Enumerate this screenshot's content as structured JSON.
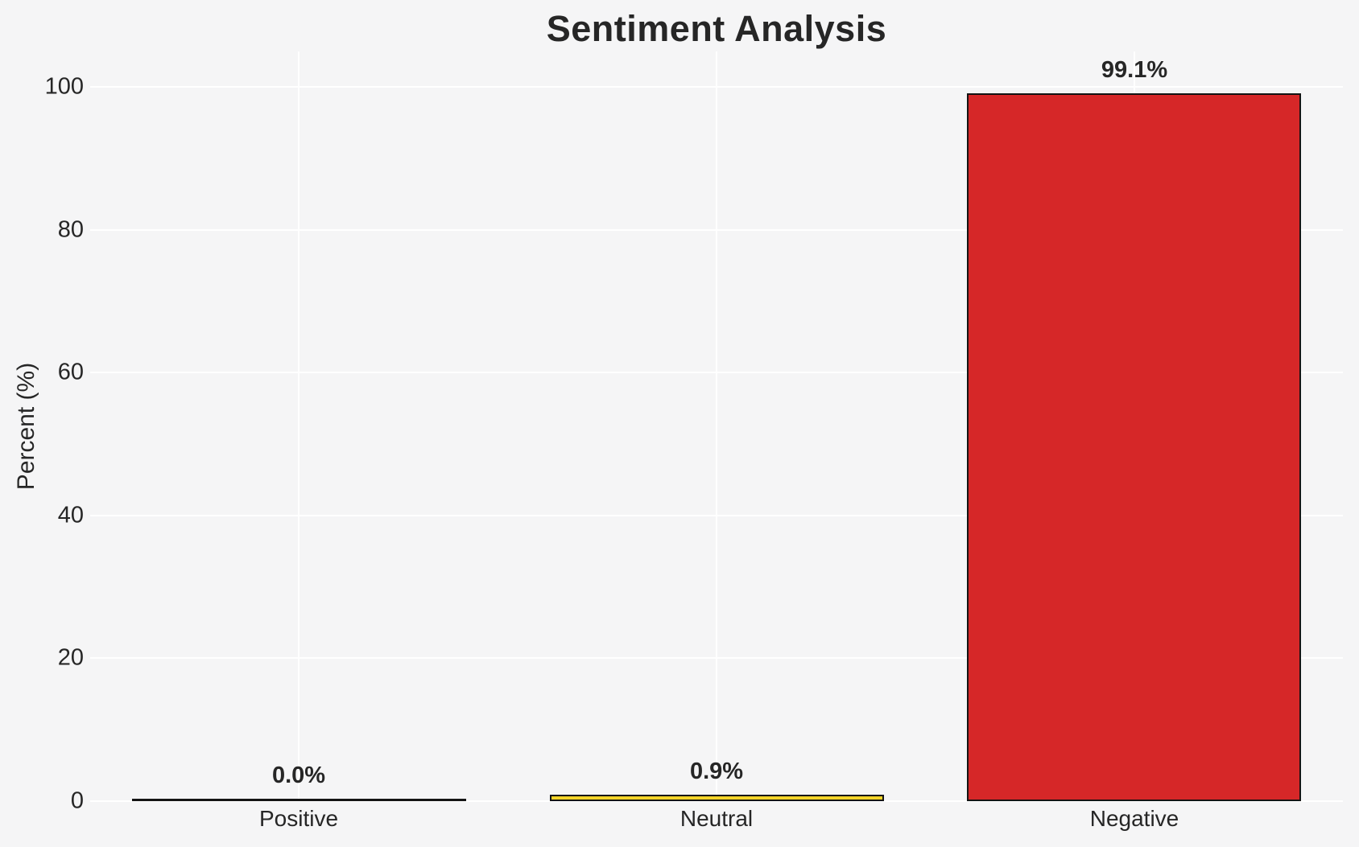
{
  "chart_data": {
    "type": "bar",
    "title": "Sentiment Analysis",
    "categories": [
      "Positive",
      "Neutral",
      "Negative"
    ],
    "values": [
      0.0,
      0.9,
      99.1
    ],
    "value_labels": [
      "0.0%",
      "0.9%",
      "99.1%"
    ],
    "bar_colors": [
      "#4caf50",
      "#f4d328",
      "#d62728"
    ],
    "bar_edge_color": "#141414",
    "xlabel": "",
    "ylabel": "Percent (%)",
    "ylim": [
      0,
      105
    ],
    "yticks": [
      0,
      20,
      40,
      60,
      80,
      100
    ],
    "grid": true,
    "legend": "none",
    "grid_color": "#ffffff",
    "background_color": "#f5f5f6",
    "text_color": "#262626"
  }
}
